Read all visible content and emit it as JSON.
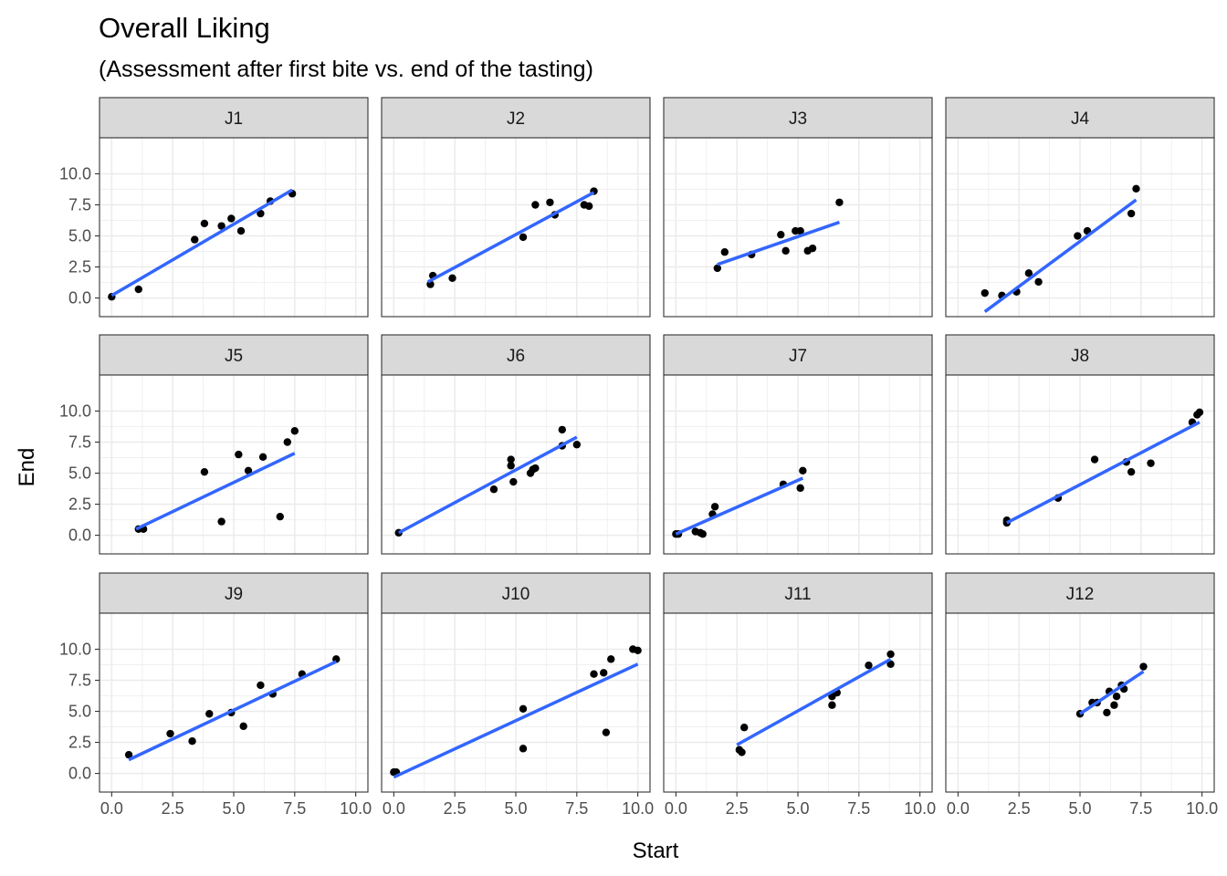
{
  "chart_data": {
    "type": "scatter",
    "title": "Overall Liking",
    "subtitle": "(Assessment after first bite vs. end of the tasting)",
    "xlabel": "Start",
    "ylabel": "End",
    "xlim": [
      -0.5,
      10.5
    ],
    "ylim": [
      -1.5,
      12.9
    ],
    "x_ticks": [
      0,
      2.5,
      5,
      7.5,
      10
    ],
    "y_ticks": [
      0,
      2.5,
      5,
      7.5,
      10
    ],
    "x_tick_labels": [
      "0.0",
      "2.5",
      "5.0",
      "7.5",
      "10.0"
    ],
    "y_tick_labels": [
      "0.0",
      "2.5",
      "5.0",
      "7.5",
      "10.0"
    ],
    "grid": true,
    "point_color": "#000000",
    "fit_color": "#3366FF",
    "panels": [
      {
        "name": "J1",
        "points": [
          [
            0,
            0.1
          ],
          [
            1.1,
            0.7
          ],
          [
            3.4,
            4.7
          ],
          [
            3.8,
            6.0
          ],
          [
            4.5,
            5.8
          ],
          [
            4.9,
            6.4
          ],
          [
            5.3,
            5.4
          ],
          [
            6.1,
            6.8
          ],
          [
            6.5,
            7.8
          ],
          [
            7.4,
            8.4
          ]
        ],
        "fit": [
          [
            0,
            0.2
          ],
          [
            7.4,
            8.7
          ]
        ]
      },
      {
        "name": "J2",
        "points": [
          [
            1.5,
            1.1
          ],
          [
            1.6,
            1.8
          ],
          [
            2.4,
            1.6
          ],
          [
            5.3,
            4.9
          ],
          [
            5.8,
            7.5
          ],
          [
            6.4,
            7.7
          ],
          [
            6.6,
            6.7
          ],
          [
            7.8,
            7.5
          ],
          [
            8.0,
            7.4
          ],
          [
            8.2,
            8.6
          ]
        ],
        "fit": [
          [
            1.4,
            1.3
          ],
          [
            8.2,
            8.5
          ]
        ]
      },
      {
        "name": "J3",
        "points": [
          [
            1.7,
            2.4
          ],
          [
            2.0,
            3.7
          ],
          [
            3.1,
            3.5
          ],
          [
            4.3,
            5.1
          ],
          [
            4.5,
            3.8
          ],
          [
            4.9,
            5.4
          ],
          [
            5.1,
            5.4
          ],
          [
            5.4,
            3.8
          ],
          [
            5.6,
            4.0
          ],
          [
            6.7,
            7.7
          ]
        ],
        "fit": [
          [
            1.7,
            2.7
          ],
          [
            6.7,
            6.1
          ]
        ]
      },
      {
        "name": "J4",
        "points": [
          [
            1.1,
            0.4
          ],
          [
            1.8,
            0.2
          ],
          [
            2.4,
            0.5
          ],
          [
            2.9,
            2.0
          ],
          [
            3.3,
            1.3
          ],
          [
            4.9,
            5.0
          ],
          [
            5.3,
            5.4
          ],
          [
            7.1,
            6.8
          ],
          [
            7.3,
            8.8
          ]
        ],
        "fit": [
          [
            1.1,
            -1.1
          ],
          [
            7.3,
            7.9
          ]
        ]
      },
      {
        "name": "J5",
        "points": [
          [
            1.1,
            0.5
          ],
          [
            1.3,
            0.5
          ],
          [
            3.8,
            5.1
          ],
          [
            4.5,
            1.1
          ],
          [
            5.2,
            6.5
          ],
          [
            5.6,
            5.2
          ],
          [
            6.2,
            6.3
          ],
          [
            6.9,
            1.5
          ],
          [
            7.2,
            7.5
          ],
          [
            7.5,
            8.4
          ]
        ],
        "fit": [
          [
            1.0,
            0.5
          ],
          [
            7.5,
            6.6
          ]
        ]
      },
      {
        "name": "J6",
        "points": [
          [
            0.2,
            0.2
          ],
          [
            4.1,
            3.7
          ],
          [
            4.8,
            6.1
          ],
          [
            4.8,
            5.6
          ],
          [
            4.9,
            4.3
          ],
          [
            5.6,
            5.0
          ],
          [
            5.7,
            5.3
          ],
          [
            5.8,
            5.4
          ],
          [
            6.9,
            8.5
          ],
          [
            6.9,
            7.2
          ],
          [
            7.5,
            7.3
          ]
        ],
        "fit": [
          [
            0.2,
            0.2
          ],
          [
            7.5,
            7.9
          ]
        ]
      },
      {
        "name": "J7",
        "points": [
          [
            0,
            0.1
          ],
          [
            0.1,
            0.1
          ],
          [
            0.8,
            0.3
          ],
          [
            1.0,
            0.2
          ],
          [
            1.1,
            0.1
          ],
          [
            1.5,
            1.7
          ],
          [
            1.6,
            2.3
          ],
          [
            4.4,
            4.1
          ],
          [
            5.1,
            3.8
          ],
          [
            5.2,
            5.2
          ]
        ],
        "fit": [
          [
            0,
            0.1
          ],
          [
            5.2,
            4.6
          ]
        ]
      },
      {
        "name": "J8",
        "points": [
          [
            2.0,
            1.0
          ],
          [
            2.0,
            1.2
          ],
          [
            4.1,
            3.0
          ],
          [
            5.6,
            6.1
          ],
          [
            6.9,
            5.9
          ],
          [
            7.1,
            5.1
          ],
          [
            7.9,
            5.8
          ],
          [
            9.6,
            9.1
          ],
          [
            9.8,
            9.7
          ],
          [
            9.9,
            9.9
          ]
        ],
        "fit": [
          [
            2.0,
            1.0
          ],
          [
            9.9,
            9.1
          ]
        ]
      },
      {
        "name": "J9",
        "points": [
          [
            0.7,
            1.5
          ],
          [
            2.4,
            3.2
          ],
          [
            3.3,
            2.6
          ],
          [
            4.0,
            4.8
          ],
          [
            4.9,
            4.9
          ],
          [
            5.4,
            3.8
          ],
          [
            6.1,
            7.1
          ],
          [
            6.6,
            6.4
          ],
          [
            7.8,
            8.0
          ],
          [
            9.2,
            9.2
          ]
        ],
        "fit": [
          [
            0.7,
            1.1
          ],
          [
            9.2,
            9.0
          ]
        ]
      },
      {
        "name": "J10",
        "points": [
          [
            0,
            0.1
          ],
          [
            0.1,
            0.1
          ],
          [
            5.3,
            5.2
          ],
          [
            5.3,
            2.0
          ],
          [
            8.2,
            8.0
          ],
          [
            8.6,
            8.1
          ],
          [
            8.7,
            3.3
          ],
          [
            8.9,
            9.2
          ],
          [
            9.8,
            10.0
          ],
          [
            10.0,
            9.9
          ]
        ],
        "fit": [
          [
            0,
            -0.3
          ],
          [
            10.0,
            8.8
          ]
        ]
      },
      {
        "name": "J11",
        "points": [
          [
            2.6,
            1.9
          ],
          [
            2.7,
            1.7
          ],
          [
            2.8,
            3.7
          ],
          [
            6.4,
            5.5
          ],
          [
            6.4,
            6.2
          ],
          [
            6.6,
            6.5
          ],
          [
            7.9,
            8.7
          ],
          [
            8.8,
            8.8
          ],
          [
            8.8,
            9.6
          ]
        ],
        "fit": [
          [
            2.5,
            2.3
          ],
          [
            8.8,
            9.2
          ]
        ]
      },
      {
        "name": "J12",
        "points": [
          [
            5.0,
            4.8
          ],
          [
            5.5,
            5.7
          ],
          [
            5.7,
            5.7
          ],
          [
            6.1,
            4.9
          ],
          [
            6.2,
            6.6
          ],
          [
            6.4,
            5.5
          ],
          [
            6.5,
            6.2
          ],
          [
            6.7,
            7.1
          ],
          [
            6.8,
            6.8
          ],
          [
            7.6,
            8.6
          ]
        ],
        "fit": [
          [
            5.0,
            4.8
          ],
          [
            7.6,
            8.2
          ]
        ]
      }
    ]
  }
}
